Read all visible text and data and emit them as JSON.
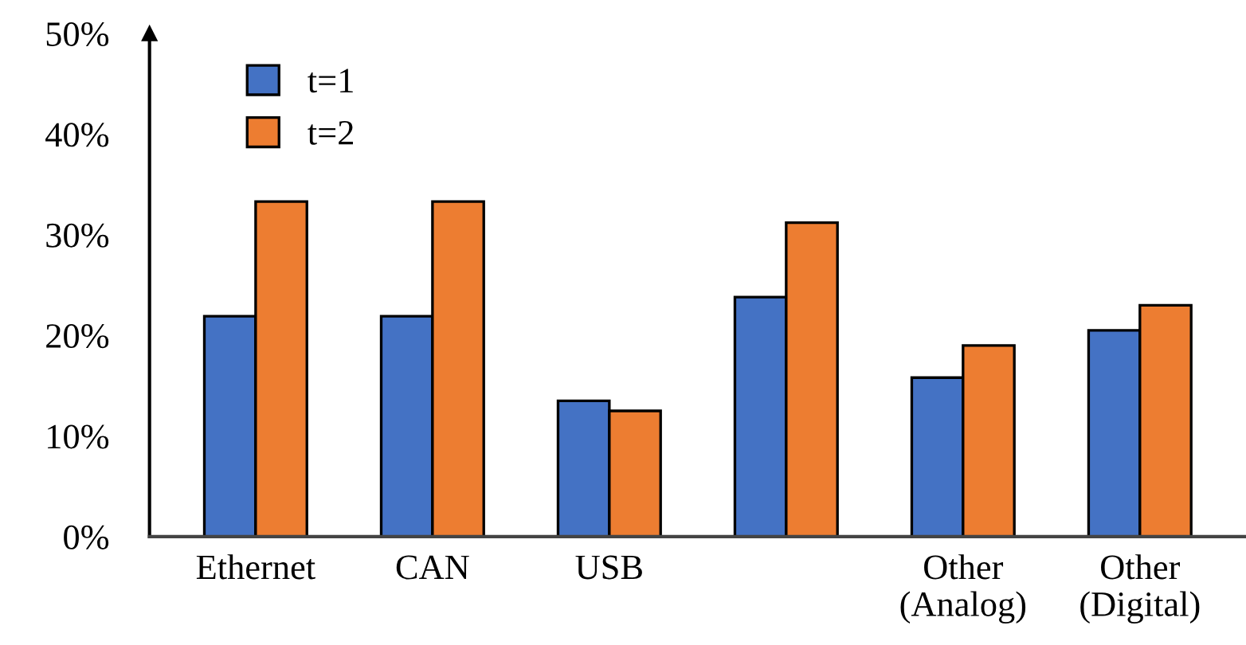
{
  "chart_data": {
    "type": "bar",
    "categories": [
      "Ethernet",
      "CAN",
      "USB",
      null,
      "Other\n(Analog)",
      "Other\n(Digital)"
    ],
    "series": [
      {
        "name": "t=1",
        "color": "#4472c4",
        "values": [
          21.9,
          21.9,
          13.5,
          23.8,
          15.8,
          20.5
        ]
      },
      {
        "name": "t=2",
        "color": "#ed7d31",
        "values": [
          33.3,
          33.3,
          12.5,
          31.2,
          19.0,
          23.0
        ]
      }
    ],
    "ylim": [
      0,
      50
    ],
    "yticks": [
      {
        "value": 0,
        "label": "0%"
      },
      {
        "value": 10,
        "label": "10%"
      },
      {
        "value": 20,
        "label": "20%"
      },
      {
        "value": 30,
        "label": "30%"
      },
      {
        "value": 40,
        "label": "40%"
      },
      {
        "value": 50,
        "label": "50%"
      }
    ],
    "grid": false,
    "legend": "top left"
  }
}
